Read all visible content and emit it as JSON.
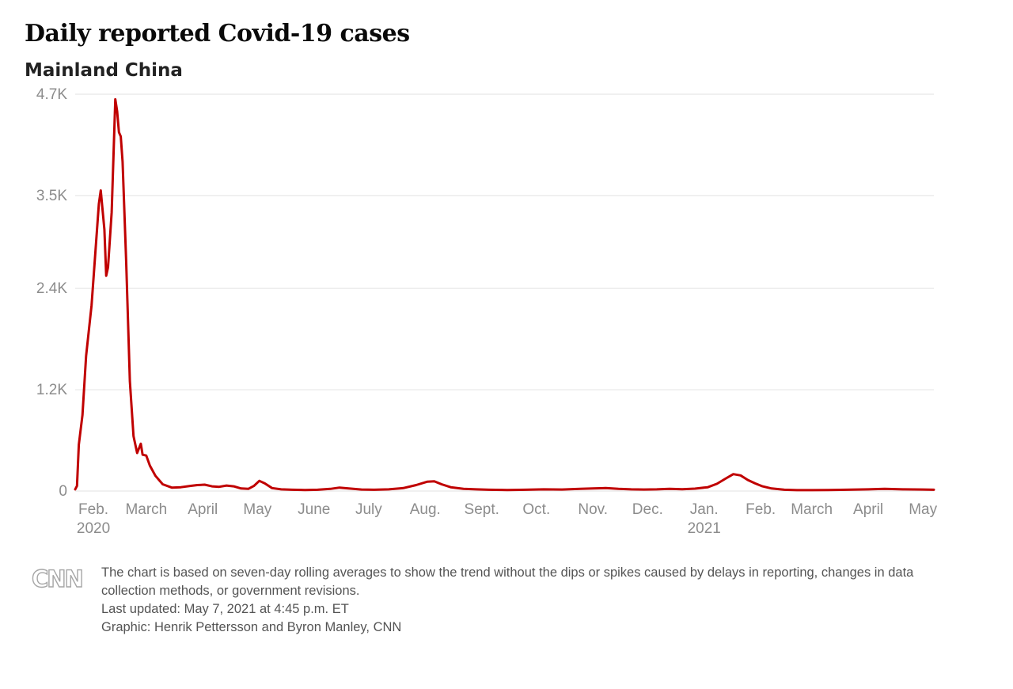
{
  "header": {
    "title": "Daily reported Covid-19 cases",
    "subtitle": "Mainland China"
  },
  "footer": {
    "logo": "CNN",
    "note": "The chart is based on seven-day rolling averages to show the trend without the dips or spikes caused by delays in reporting, changes in data collection methods, or government revisions.",
    "updated": "Last updated: May 7, 2021 at 4:45 p.m. ET",
    "credit": "Graphic: Henrik Pettersson and Byron Manley, CNN"
  },
  "chart_data": {
    "type": "line",
    "title": "Daily reported Covid-19 cases",
    "subtitle": "Mainland China",
    "line_color": "#c00000",
    "grid_color": "#e2e2e2",
    "axis_label_color": "#8c8c8c",
    "legend": "none",
    "grid": true,
    "ylim": [
      0,
      4700
    ],
    "y_ticks": [
      {
        "label": "0",
        "value": 0
      },
      {
        "label": "1.2K",
        "value": 1200
      },
      {
        "label": "2.4K",
        "value": 2400
      },
      {
        "label": "3.5K",
        "value": 3500
      },
      {
        "label": "4.7K",
        "value": 4700
      }
    ],
    "x_range": [
      "2020-01-22",
      "2021-05-07"
    ],
    "x_ticks": [
      {
        "label": "Feb.",
        "sublabel": "2020",
        "date": "2020-02-01"
      },
      {
        "label": "March",
        "date": "2020-03-01"
      },
      {
        "label": "April",
        "date": "2020-04-01"
      },
      {
        "label": "May",
        "date": "2020-05-01"
      },
      {
        "label": "June",
        "date": "2020-06-01"
      },
      {
        "label": "July",
        "date": "2020-07-01"
      },
      {
        "label": "Aug.",
        "date": "2020-08-01"
      },
      {
        "label": "Sept.",
        "date": "2020-09-01"
      },
      {
        "label": "Oct.",
        "date": "2020-10-01"
      },
      {
        "label": "Nov.",
        "date": "2020-11-01"
      },
      {
        "label": "Dec.",
        "date": "2020-12-01"
      },
      {
        "label": "Jan.",
        "sublabel": "2021",
        "date": "2021-01-01"
      },
      {
        "label": "Feb.",
        "date": "2021-02-01"
      },
      {
        "label": "March",
        "date": "2021-03-01"
      },
      {
        "label": "April",
        "date": "2021-04-01"
      },
      {
        "label": "May",
        "date": "2021-05-01"
      }
    ],
    "series": [
      {
        "name": "Daily reported Covid-19 cases (seven-day rolling average)",
        "points": [
          [
            "2020-01-22",
            20
          ],
          [
            "2020-01-23",
            60
          ],
          [
            "2020-01-24",
            550
          ],
          [
            "2020-01-26",
            900
          ],
          [
            "2020-01-28",
            1600
          ],
          [
            "2020-01-31",
            2200
          ],
          [
            "2020-02-02",
            2800
          ],
          [
            "2020-02-04",
            3400
          ],
          [
            "2020-02-05",
            3560
          ],
          [
            "2020-02-07",
            3100
          ],
          [
            "2020-02-08",
            2550
          ],
          [
            "2020-02-09",
            2650
          ],
          [
            "2020-02-11",
            3300
          ],
          [
            "2020-02-13",
            4640
          ],
          [
            "2020-02-14",
            4500
          ],
          [
            "2020-02-15",
            4250
          ],
          [
            "2020-02-16",
            4200
          ],
          [
            "2020-02-17",
            3900
          ],
          [
            "2020-02-19",
            2700
          ],
          [
            "2020-02-21",
            1300
          ],
          [
            "2020-02-23",
            650
          ],
          [
            "2020-02-25",
            450
          ],
          [
            "2020-02-27",
            560
          ],
          [
            "2020-02-28",
            430
          ],
          [
            "2020-03-01",
            420
          ],
          [
            "2020-03-03",
            300
          ],
          [
            "2020-03-06",
            180
          ],
          [
            "2020-03-10",
            80
          ],
          [
            "2020-03-15",
            40
          ],
          [
            "2020-03-20",
            45
          ],
          [
            "2020-03-25",
            60
          ],
          [
            "2020-03-29",
            70
          ],
          [
            "2020-04-02",
            75
          ],
          [
            "2020-04-06",
            55
          ],
          [
            "2020-04-10",
            50
          ],
          [
            "2020-04-14",
            65
          ],
          [
            "2020-04-18",
            55
          ],
          [
            "2020-04-22",
            30
          ],
          [
            "2020-04-26",
            25
          ],
          [
            "2020-04-29",
            60
          ],
          [
            "2020-05-02",
            120
          ],
          [
            "2020-05-05",
            90
          ],
          [
            "2020-05-09",
            35
          ],
          [
            "2020-05-14",
            20
          ],
          [
            "2020-05-20",
            15
          ],
          [
            "2020-05-27",
            12
          ],
          [
            "2020-06-03",
            15
          ],
          [
            "2020-06-10",
            25
          ],
          [
            "2020-06-15",
            40
          ],
          [
            "2020-06-20",
            30
          ],
          [
            "2020-06-27",
            18
          ],
          [
            "2020-07-04",
            15
          ],
          [
            "2020-07-12",
            20
          ],
          [
            "2020-07-20",
            35
          ],
          [
            "2020-07-27",
            70
          ],
          [
            "2020-08-02",
            110
          ],
          [
            "2020-08-06",
            115
          ],
          [
            "2020-08-10",
            80
          ],
          [
            "2020-08-15",
            45
          ],
          [
            "2020-08-22",
            25
          ],
          [
            "2020-08-29",
            20
          ],
          [
            "2020-09-05",
            15
          ],
          [
            "2020-09-15",
            12
          ],
          [
            "2020-09-25",
            15
          ],
          [
            "2020-10-05",
            20
          ],
          [
            "2020-10-15",
            18
          ],
          [
            "2020-10-25",
            25
          ],
          [
            "2020-11-01",
            30
          ],
          [
            "2020-11-08",
            35
          ],
          [
            "2020-11-15",
            25
          ],
          [
            "2020-11-22",
            20
          ],
          [
            "2020-11-29",
            18
          ],
          [
            "2020-12-06",
            20
          ],
          [
            "2020-12-13",
            25
          ],
          [
            "2020-12-20",
            22
          ],
          [
            "2020-12-27",
            28
          ],
          [
            "2021-01-03",
            45
          ],
          [
            "2021-01-08",
            85
          ],
          [
            "2021-01-13",
            150
          ],
          [
            "2021-01-17",
            200
          ],
          [
            "2021-01-21",
            185
          ],
          [
            "2021-01-25",
            130
          ],
          [
            "2021-01-29",
            90
          ],
          [
            "2021-02-02",
            55
          ],
          [
            "2021-02-07",
            30
          ],
          [
            "2021-02-14",
            15
          ],
          [
            "2021-02-21",
            10
          ],
          [
            "2021-03-01",
            10
          ],
          [
            "2021-03-10",
            12
          ],
          [
            "2021-03-20",
            15
          ],
          [
            "2021-04-01",
            20
          ],
          [
            "2021-04-10",
            25
          ],
          [
            "2021-04-20",
            20
          ],
          [
            "2021-05-01",
            18
          ],
          [
            "2021-05-07",
            15
          ]
        ]
      }
    ]
  }
}
